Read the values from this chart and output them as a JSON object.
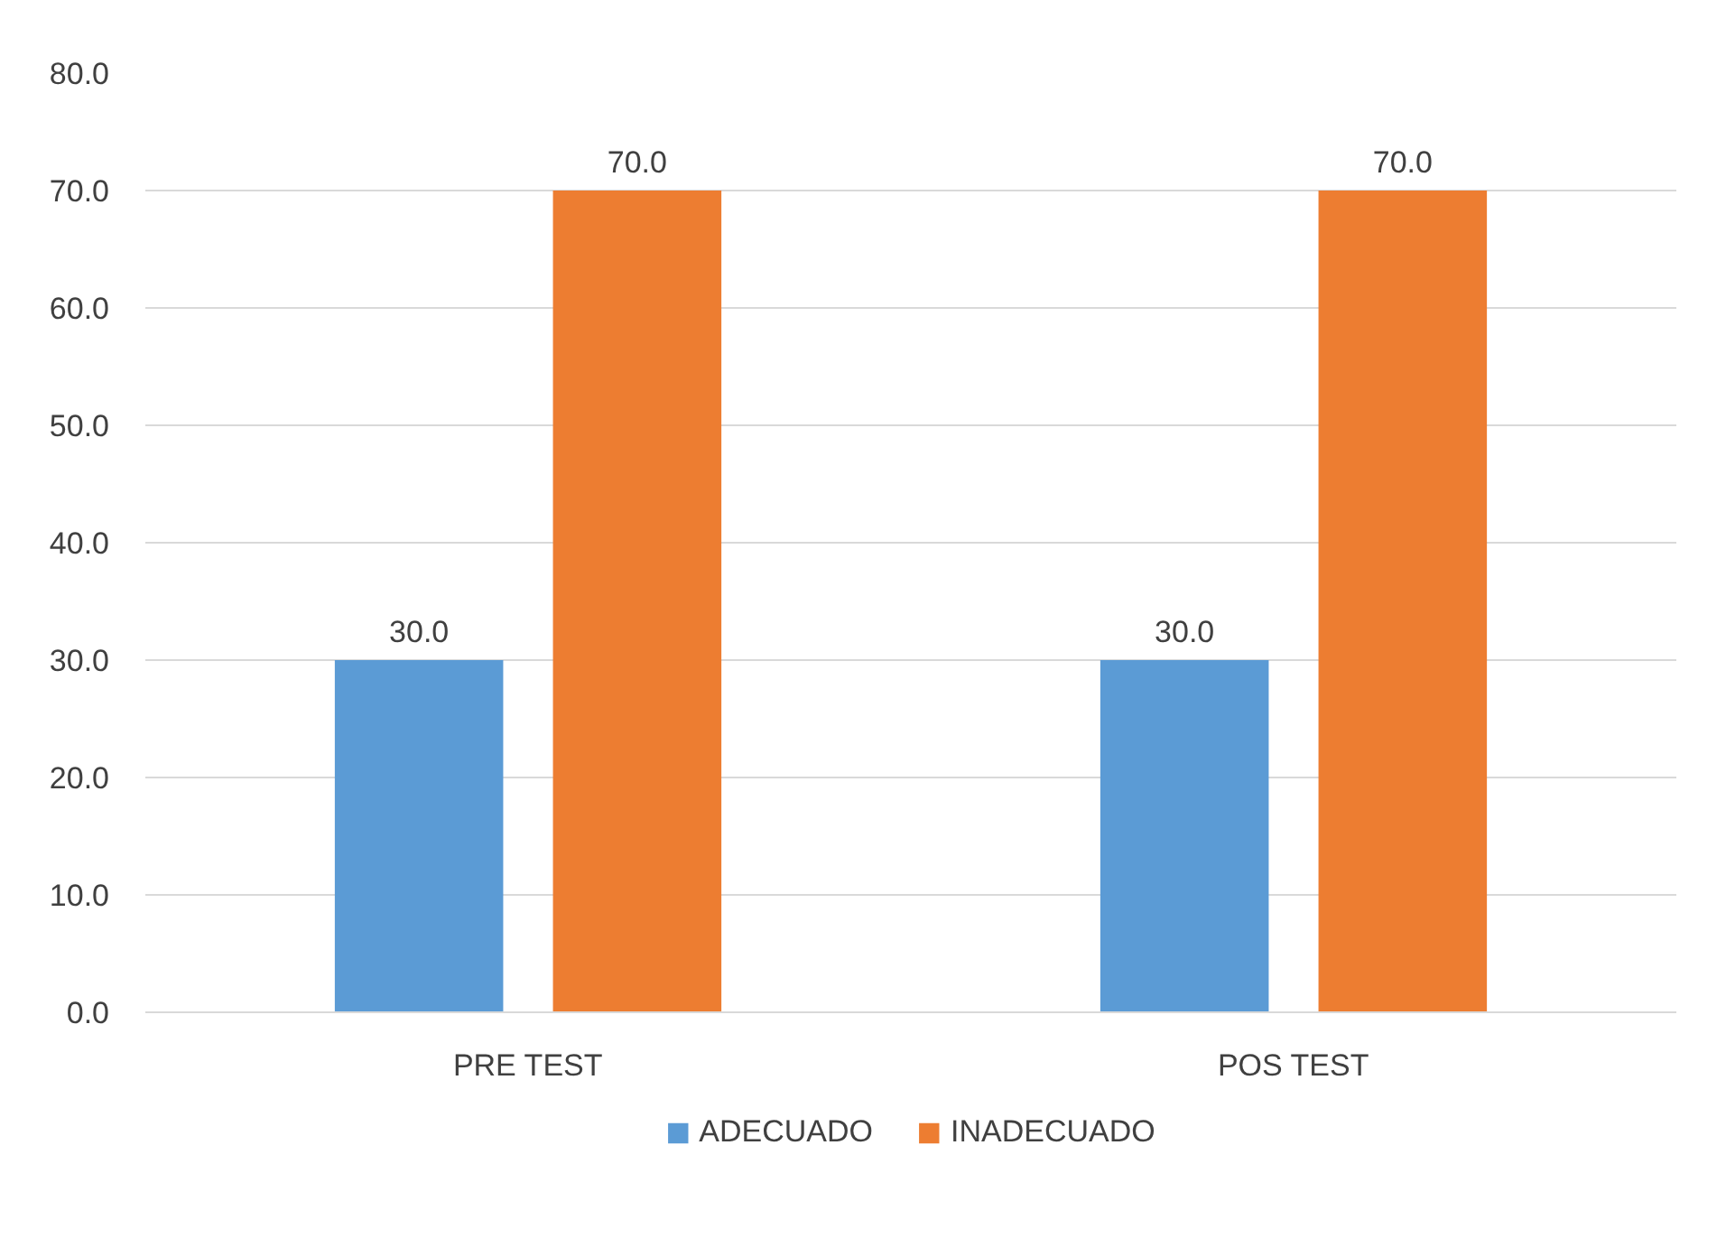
{
  "chart_data": {
    "type": "bar",
    "categories": [
      "PRE TEST",
      "POS TEST"
    ],
    "series": [
      {
        "name": "ADECUADO",
        "color": "#5b9bd5",
        "values": [
          30,
          30
        ],
        "value_labels": [
          "30.0",
          "30.0"
        ]
      },
      {
        "name": "INADECUADO",
        "color": "#ed7d31",
        "values": [
          70,
          70
        ],
        "value_labels": [
          "70.0",
          "70.0"
        ]
      }
    ],
    "ylim": [
      0,
      80
    ],
    "yticks": [
      {
        "value": 0,
        "label": "0.0"
      },
      {
        "value": 10,
        "label": "10.0"
      },
      {
        "value": 20,
        "label": "20.0"
      },
      {
        "value": 30,
        "label": "30.0"
      },
      {
        "value": 40,
        "label": "40.0"
      },
      {
        "value": 50,
        "label": "50.0"
      },
      {
        "value": 60,
        "label": "60.0"
      },
      {
        "value": 70,
        "label": "70.0"
      },
      {
        "value": 80,
        "label": "80.0"
      }
    ],
    "grid": "y",
    "legend": "bottom"
  }
}
